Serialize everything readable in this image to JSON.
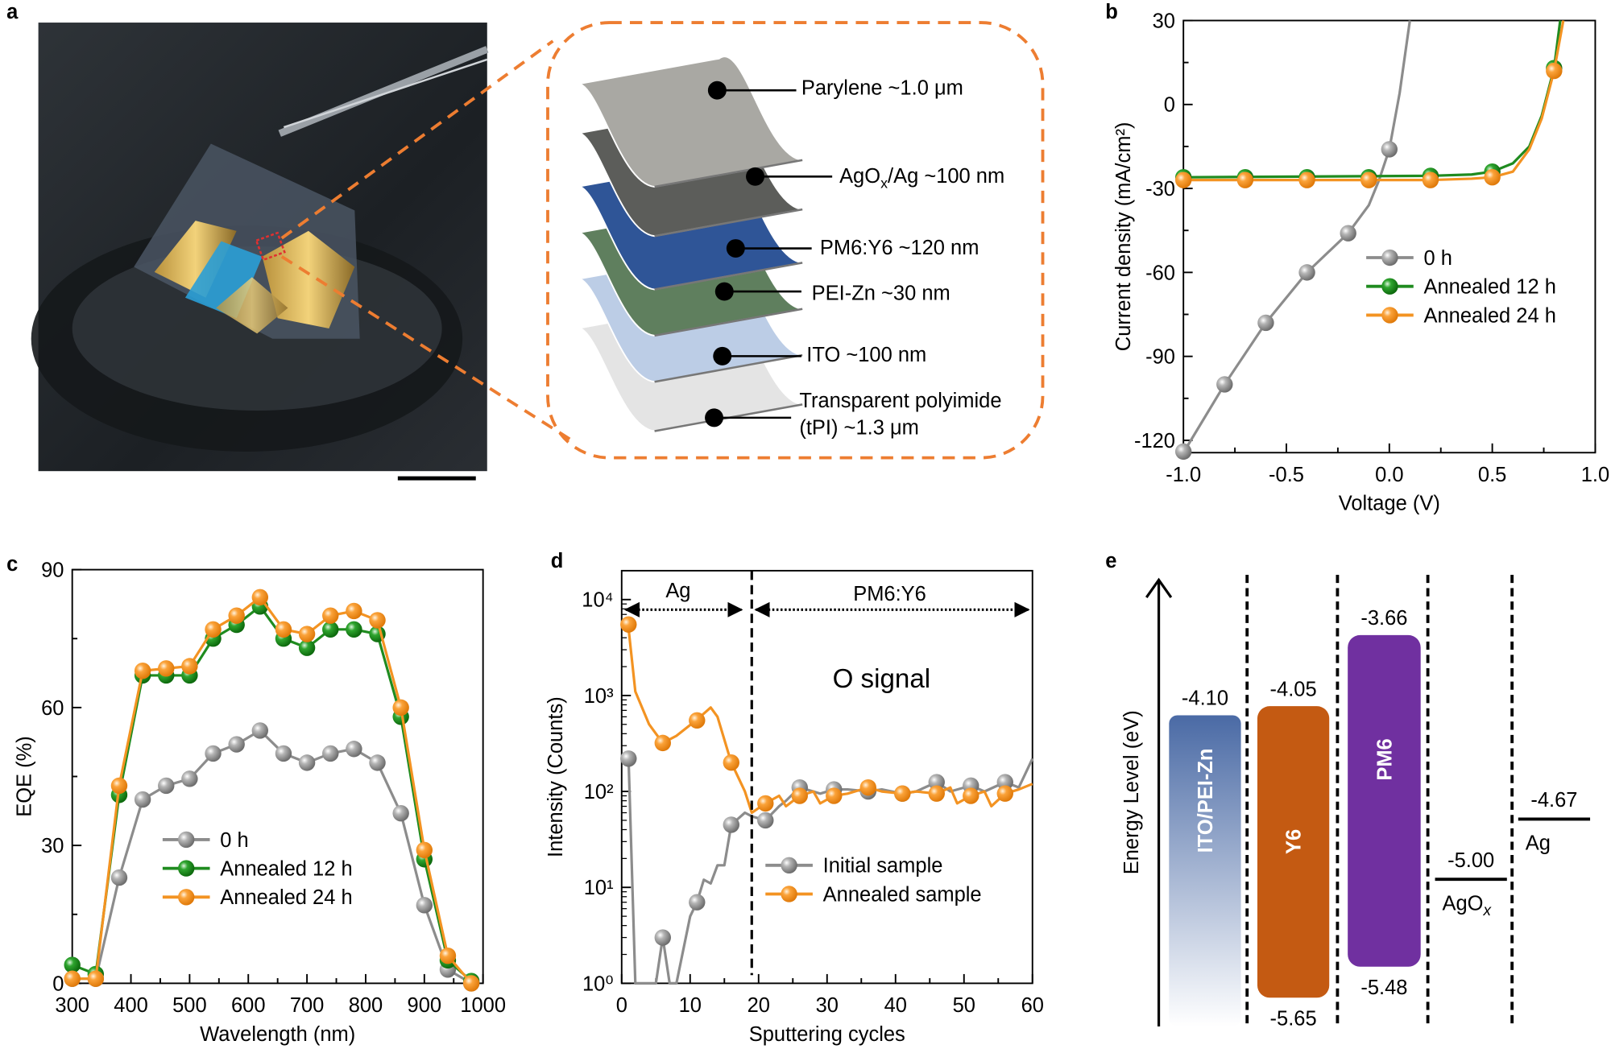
{
  "panel_labels": {
    "a": "a",
    "b": "b",
    "c": "c",
    "d": "d",
    "e": "e"
  },
  "panel_a": {
    "layers": [
      {
        "label": "Parylene  ~1.0 μm",
        "color": "#a9a8a3"
      },
      {
        "label_main": "AgO",
        "label_sub": "x",
        "label_rest": "/Ag ~100 nm",
        "color": "#5c5d5a"
      },
      {
        "label": "PM6:Y6 ~120 nm",
        "color": "#2f5597"
      },
      {
        "label": "PEI-Zn  ~30 nm",
        "color": "#5f7f5e"
      },
      {
        "label": "ITO  ~100 nm",
        "color": "#bccde6"
      },
      {
        "label": "Transparent polyimide",
        "label2": "(tPI) ~1.3 μm",
        "color": "#e4e4e4"
      }
    ],
    "callout_color": "#ed7d31",
    "highlight_color": "#e03030"
  },
  "chart_data": [
    {
      "id": "b",
      "type": "line",
      "xlabel": "Voltage (V)",
      "ylabel": "Current density (mA/cm²)",
      "xlim": [
        -1.0,
        1.0
      ],
      "ylim": [
        -124.4,
        30
      ],
      "xticks": [
        -1.0,
        -0.5,
        0.0,
        0.5,
        1.0
      ],
      "xtick_labels": [
        "-1.0",
        "-0.5",
        "0.0",
        "0.5",
        "1.0"
      ],
      "yticks": [
        30,
        0,
        -30,
        -60,
        -90,
        -120
      ],
      "ytick_labels": [
        "30",
        "0",
        "-30",
        "-60",
        "-90",
        "-120"
      ],
      "grid": false,
      "legend": "center-right",
      "series": [
        {
          "name": "0 h",
          "color": "#8c8c8c",
          "line": [
            [
              -1,
              -124.4
            ],
            [
              -0.8,
              -100
            ],
            [
              -0.6,
              -78
            ],
            [
              -0.4,
              -60
            ],
            [
              -0.2,
              -46
            ],
            [
              -0.1,
              -36
            ],
            [
              -0.05,
              -27
            ],
            [
              0,
              -16
            ],
            [
              0.05,
              4
            ],
            [
              0.1,
              30
            ]
          ],
          "markers": [
            [
              -1,
              -124
            ],
            [
              -0.8,
              -100
            ],
            [
              -0.6,
              -78
            ],
            [
              -0.4,
              -60
            ],
            [
              -0.2,
              -46
            ],
            [
              0,
              -16
            ]
          ]
        },
        {
          "name": "Annealed 12 h",
          "color": "#1f8b1f",
          "line": [
            [
              -1,
              -26
            ],
            [
              0.2,
              -25.5
            ],
            [
              0.4,
              -25
            ],
            [
              0.5,
              -24
            ],
            [
              0.6,
              -21
            ],
            [
              0.68,
              -15
            ],
            [
              0.74,
              -4
            ],
            [
              0.8,
              13
            ],
            [
              0.83,
              30
            ]
          ],
          "markers": [
            [
              -1,
              -26
            ],
            [
              -0.7,
              -26
            ],
            [
              -0.4,
              -26
            ],
            [
              -0.1,
              -26
            ],
            [
              0.2,
              -25.5
            ],
            [
              0.5,
              -24
            ],
            [
              0.8,
              13
            ]
          ]
        },
        {
          "name": "Annealed 24 h",
          "color": "#f39322",
          "line": [
            [
              -1,
              -27
            ],
            [
              0.2,
              -27
            ],
            [
              0.4,
              -26.5
            ],
            [
              0.5,
              -26
            ],
            [
              0.6,
              -24
            ],
            [
              0.68,
              -16
            ],
            [
              0.74,
              -5
            ],
            [
              0.8,
              12
            ],
            [
              0.845,
              30
            ]
          ],
          "markers": [
            [
              -1,
              -27
            ],
            [
              -0.7,
              -27
            ],
            [
              -0.4,
              -27
            ],
            [
              -0.1,
              -27
            ],
            [
              0.2,
              -27
            ],
            [
              0.5,
              -26
            ],
            [
              0.8,
              12
            ]
          ]
        }
      ]
    },
    {
      "id": "c",
      "type": "line",
      "xlabel": "Wavelength (nm)",
      "ylabel": "EQE (%)",
      "xlim": [
        300,
        1000
      ],
      "ylim": [
        0,
        90
      ],
      "xticks": [
        300,
        400,
        500,
        600,
        700,
        800,
        900,
        1000
      ],
      "xtick_labels": [
        "300",
        "400",
        "500",
        "600",
        "700",
        "800",
        "900",
        "1000"
      ],
      "yticks": [
        0,
        30,
        60,
        90
      ],
      "ytick_labels": [
        "0",
        "30",
        "60",
        "90"
      ],
      "grid": false,
      "legend": "bottom-left",
      "x": [
        300,
        340,
        380,
        420,
        460,
        500,
        540,
        580,
        620,
        660,
        700,
        740,
        780,
        820,
        860,
        900,
        940,
        980
      ],
      "series": [
        {
          "name": "0 h",
          "color": "#8c8c8c",
          "values": [
            1,
            1,
            23,
            40,
            43,
            44.5,
            50,
            52,
            55,
            50,
            48,
            50,
            51,
            48,
            37,
            17,
            3,
            0
          ]
        },
        {
          "name": "Annealed 12 h",
          "color": "#1f8b1f",
          "values": [
            4,
            2,
            41,
            67,
            67,
            67,
            75,
            78,
            82,
            75,
            73,
            77,
            77,
            76,
            58,
            27,
            5,
            0.5
          ]
        },
        {
          "name": "Annealed 24 h",
          "color": "#f39322",
          "values": [
            1,
            1,
            43,
            68,
            68.5,
            69,
            77,
            80,
            84,
            77,
            76,
            80,
            81,
            79,
            60,
            29,
            6,
            0
          ]
        }
      ]
    },
    {
      "id": "d",
      "type": "line",
      "xlabel": "Sputtering cycles",
      "ylabel": "Intensity (Counts)",
      "xlim": [
        0,
        60
      ],
      "ylim": [
        1,
        20000
      ],
      "yscale": "log",
      "xticks": [
        0,
        10,
        20,
        30,
        40,
        50,
        60
      ],
      "xtick_labels": [
        "0",
        "10",
        "20",
        "30",
        "40",
        "50",
        "60"
      ],
      "yticks": [
        1,
        10,
        100,
        1000,
        10000
      ],
      "ytick_labels": [
        "10⁰",
        "10¹",
        "10²",
        "10³",
        "10⁴"
      ],
      "grid": false,
      "legend": "bottom-right",
      "annotations": {
        "region_left": "Ag",
        "region_right": "PM6:Y6",
        "signal": "O signal",
        "boundary": 19
      },
      "series": [
        {
          "name": "Initial sample",
          "color": "#8c8c8c",
          "line": [
            [
              1,
              220
            ],
            [
              2,
              1
            ],
            [
              5,
              1
            ],
            [
              6,
              3
            ],
            [
              7,
              1
            ],
            [
              8,
              1
            ],
            [
              10,
              5
            ],
            [
              11,
              7
            ],
            [
              12,
              12
            ],
            [
              13,
              11
            ],
            [
              14,
              17
            ],
            [
              15,
              17
            ],
            [
              16,
              45
            ],
            [
              18,
              60
            ],
            [
              19,
              55
            ],
            [
              21,
              50
            ],
            [
              23,
              70
            ],
            [
              24,
              80
            ],
            [
              26,
              110
            ],
            [
              28,
              100
            ],
            [
              29,
              95
            ],
            [
              31,
              105
            ],
            [
              33,
              105
            ],
            [
              36,
              100
            ],
            [
              38,
              105
            ],
            [
              41,
              95
            ],
            [
              43,
              100
            ],
            [
              46,
              125
            ],
            [
              48,
              100
            ],
            [
              51,
              115
            ],
            [
              53,
              100
            ],
            [
              56,
              125
            ],
            [
              58,
              110
            ],
            [
              60,
              220
            ]
          ],
          "markers": [
            [
              1,
              220
            ],
            [
              6,
              3
            ],
            [
              11,
              7
            ],
            [
              16,
              45
            ],
            [
              21,
              50
            ],
            [
              26,
              110
            ],
            [
              31,
              105
            ],
            [
              36,
              100
            ],
            [
              41,
              95
            ],
            [
              46,
              125
            ],
            [
              51,
              115
            ],
            [
              56,
              125
            ]
          ]
        },
        {
          "name": "Annealed sample",
          "color": "#f39322",
          "line": [
            [
              0.5,
              5500
            ],
            [
              1,
              5000
            ],
            [
              2,
              1100
            ],
            [
              4,
              500
            ],
            [
              6,
              320
            ],
            [
              8,
              380
            ],
            [
              11,
              560
            ],
            [
              13,
              750
            ],
            [
              14,
              600
            ],
            [
              16,
              200
            ],
            [
              18,
              100
            ],
            [
              19,
              60
            ],
            [
              21,
              75
            ],
            [
              23,
              90
            ],
            [
              24,
              70
            ],
            [
              26,
              90
            ],
            [
              28,
              100
            ],
            [
              29,
              75
            ],
            [
              31,
              90
            ],
            [
              33,
              95
            ],
            [
              36,
              110
            ],
            [
              38,
              100
            ],
            [
              41,
              95
            ],
            [
              43,
              100
            ],
            [
              46,
              95
            ],
            [
              48,
              110
            ],
            [
              49,
              75
            ],
            [
              51,
              90
            ],
            [
              53,
              100
            ],
            [
              54,
              70
            ],
            [
              56,
              95
            ],
            [
              58,
              105
            ],
            [
              60,
              120
            ]
          ],
          "markers": [
            [
              1,
              5500
            ],
            [
              6,
              320
            ],
            [
              11,
              550
            ],
            [
              16,
              200
            ],
            [
              21,
              75
            ],
            [
              26,
              90
            ],
            [
              31,
              90
            ],
            [
              36,
              110
            ],
            [
              41,
              95
            ],
            [
              46,
              95
            ],
            [
              51,
              90
            ],
            [
              56,
              95
            ]
          ]
        }
      ]
    },
    {
      "id": "e",
      "type": "diagram",
      "ylabel": "Energy Level (eV)",
      "bands": [
        {
          "name": "ITO/PEI-Zn",
          "top": -4.1,
          "top_label": "-4.10",
          "color": "#4a6aa5",
          "fade": true
        },
        {
          "name": "Y6",
          "top": -4.05,
          "bottom": -5.65,
          "top_label": "-4.05",
          "bottom_label": "-5.65",
          "color": "#c45a12"
        },
        {
          "name": "PM6",
          "top": -3.66,
          "bottom": -5.48,
          "top_label": "-3.66",
          "bottom_label": "-5.48",
          "color": "#7030a0"
        }
      ],
      "levels": [
        {
          "name_main": "AgO",
          "name_sub": "x",
          "value": -5.0,
          "label": "-5.00"
        },
        {
          "name_main": "Ag",
          "name_sub": "",
          "value": -4.67,
          "label": "-4.67"
        }
      ]
    }
  ]
}
